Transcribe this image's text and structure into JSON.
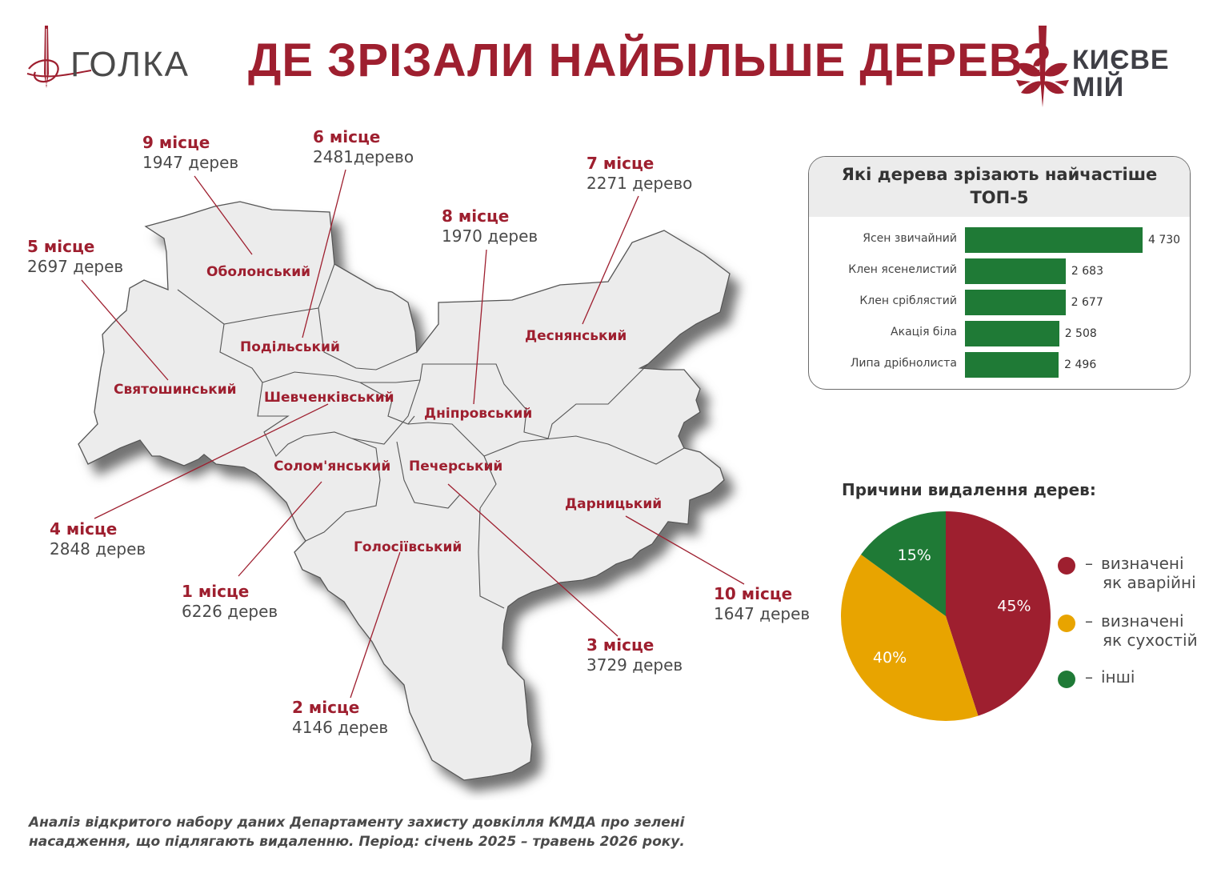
{
  "header": {
    "title": "ДЕ ЗРІЗАЛИ НАЙБІЛЬШЕ ДЕРЕВ?",
    "logo_left": "ГОЛКА",
    "logo_right_line1": "КИЄВЕ",
    "logo_right_line2": "МІЙ"
  },
  "districts": [
    {
      "name": "Оболонський",
      "rank": "9 місце",
      "count": "1947 дерев"
    },
    {
      "name": "Подільський",
      "rank": "6 місце",
      "count": "2481дерево"
    },
    {
      "name": "Деснянський",
      "rank": "7 місце",
      "count": "2271 дерево"
    },
    {
      "name": "Дніпровський",
      "rank": "8 місце",
      "count": "1970 дерев"
    },
    {
      "name": "Святошинський",
      "rank": "5 місце",
      "count": "2697 дерев"
    },
    {
      "name": "Шевченківський",
      "rank": "4 місце",
      "count": "2848 дерев"
    },
    {
      "name": "Солом'янський",
      "rank": "1 місце",
      "count": "6226 дерев"
    },
    {
      "name": "Печерський",
      "rank": "3 місце",
      "count": "3729 дерев"
    },
    {
      "name": "Голосіївський",
      "rank": "2 місце",
      "count": "4146 дерев"
    },
    {
      "name": "Дарницький",
      "rank": "10 місце",
      "count": "1647 дерев"
    }
  ],
  "colors": {
    "accent": "#9e1f2f",
    "bar_green": "#1f7a36",
    "map_fill": "#ececec",
    "pie_red": "#9e1f2f",
    "pie_yellow": "#e8a400",
    "pie_green": "#1f7a36"
  },
  "chart_data": [
    {
      "type": "bar",
      "orientation": "horizontal",
      "title": "Які дерева зрізають найчастіше ТОП-5",
      "title_line1": "Які дерева зрізають найчастіше",
      "title_line2": "ТОП-5",
      "categories": [
        "Ясен звичайний",
        "Клен ясенелистий",
        "Клен сріблястий",
        "Акація біла",
        "Липа дрібнолиста"
      ],
      "values": [
        4730,
        2683,
        2677,
        2508,
        2496
      ],
      "value_labels": [
        "4 730",
        "2 683",
        "2 677",
        "2 508",
        "2 496"
      ],
      "grid": false
    },
    {
      "type": "pie",
      "title": "Причини видалення дерев:",
      "slices": [
        {
          "label": "визначені як аварійні",
          "legend_line1": "визначені",
          "legend_line2": "як аварійні",
          "value": 45,
          "value_label": "45%",
          "color": "#9e1f2f"
        },
        {
          "label": "визначені як сухостій",
          "legend_line1": "визначені",
          "legend_line2": "як сухостій",
          "value": 40,
          "value_label": "40%",
          "color": "#e8a400"
        },
        {
          "label": "інші",
          "legend_line1": "інші",
          "legend_line2": "",
          "value": 15,
          "value_label": "15%",
          "color": "#1f7a36"
        }
      ],
      "legend": "right"
    }
  ],
  "legend_dash": "–",
  "footer": {
    "line1": "Аналіз відкритого набору даних Департаменту захисту довкілля КМДА про зелені",
    "line2": "насадження, що підлягають видаленню. Період: січень 2025 – травень 2026 року."
  }
}
